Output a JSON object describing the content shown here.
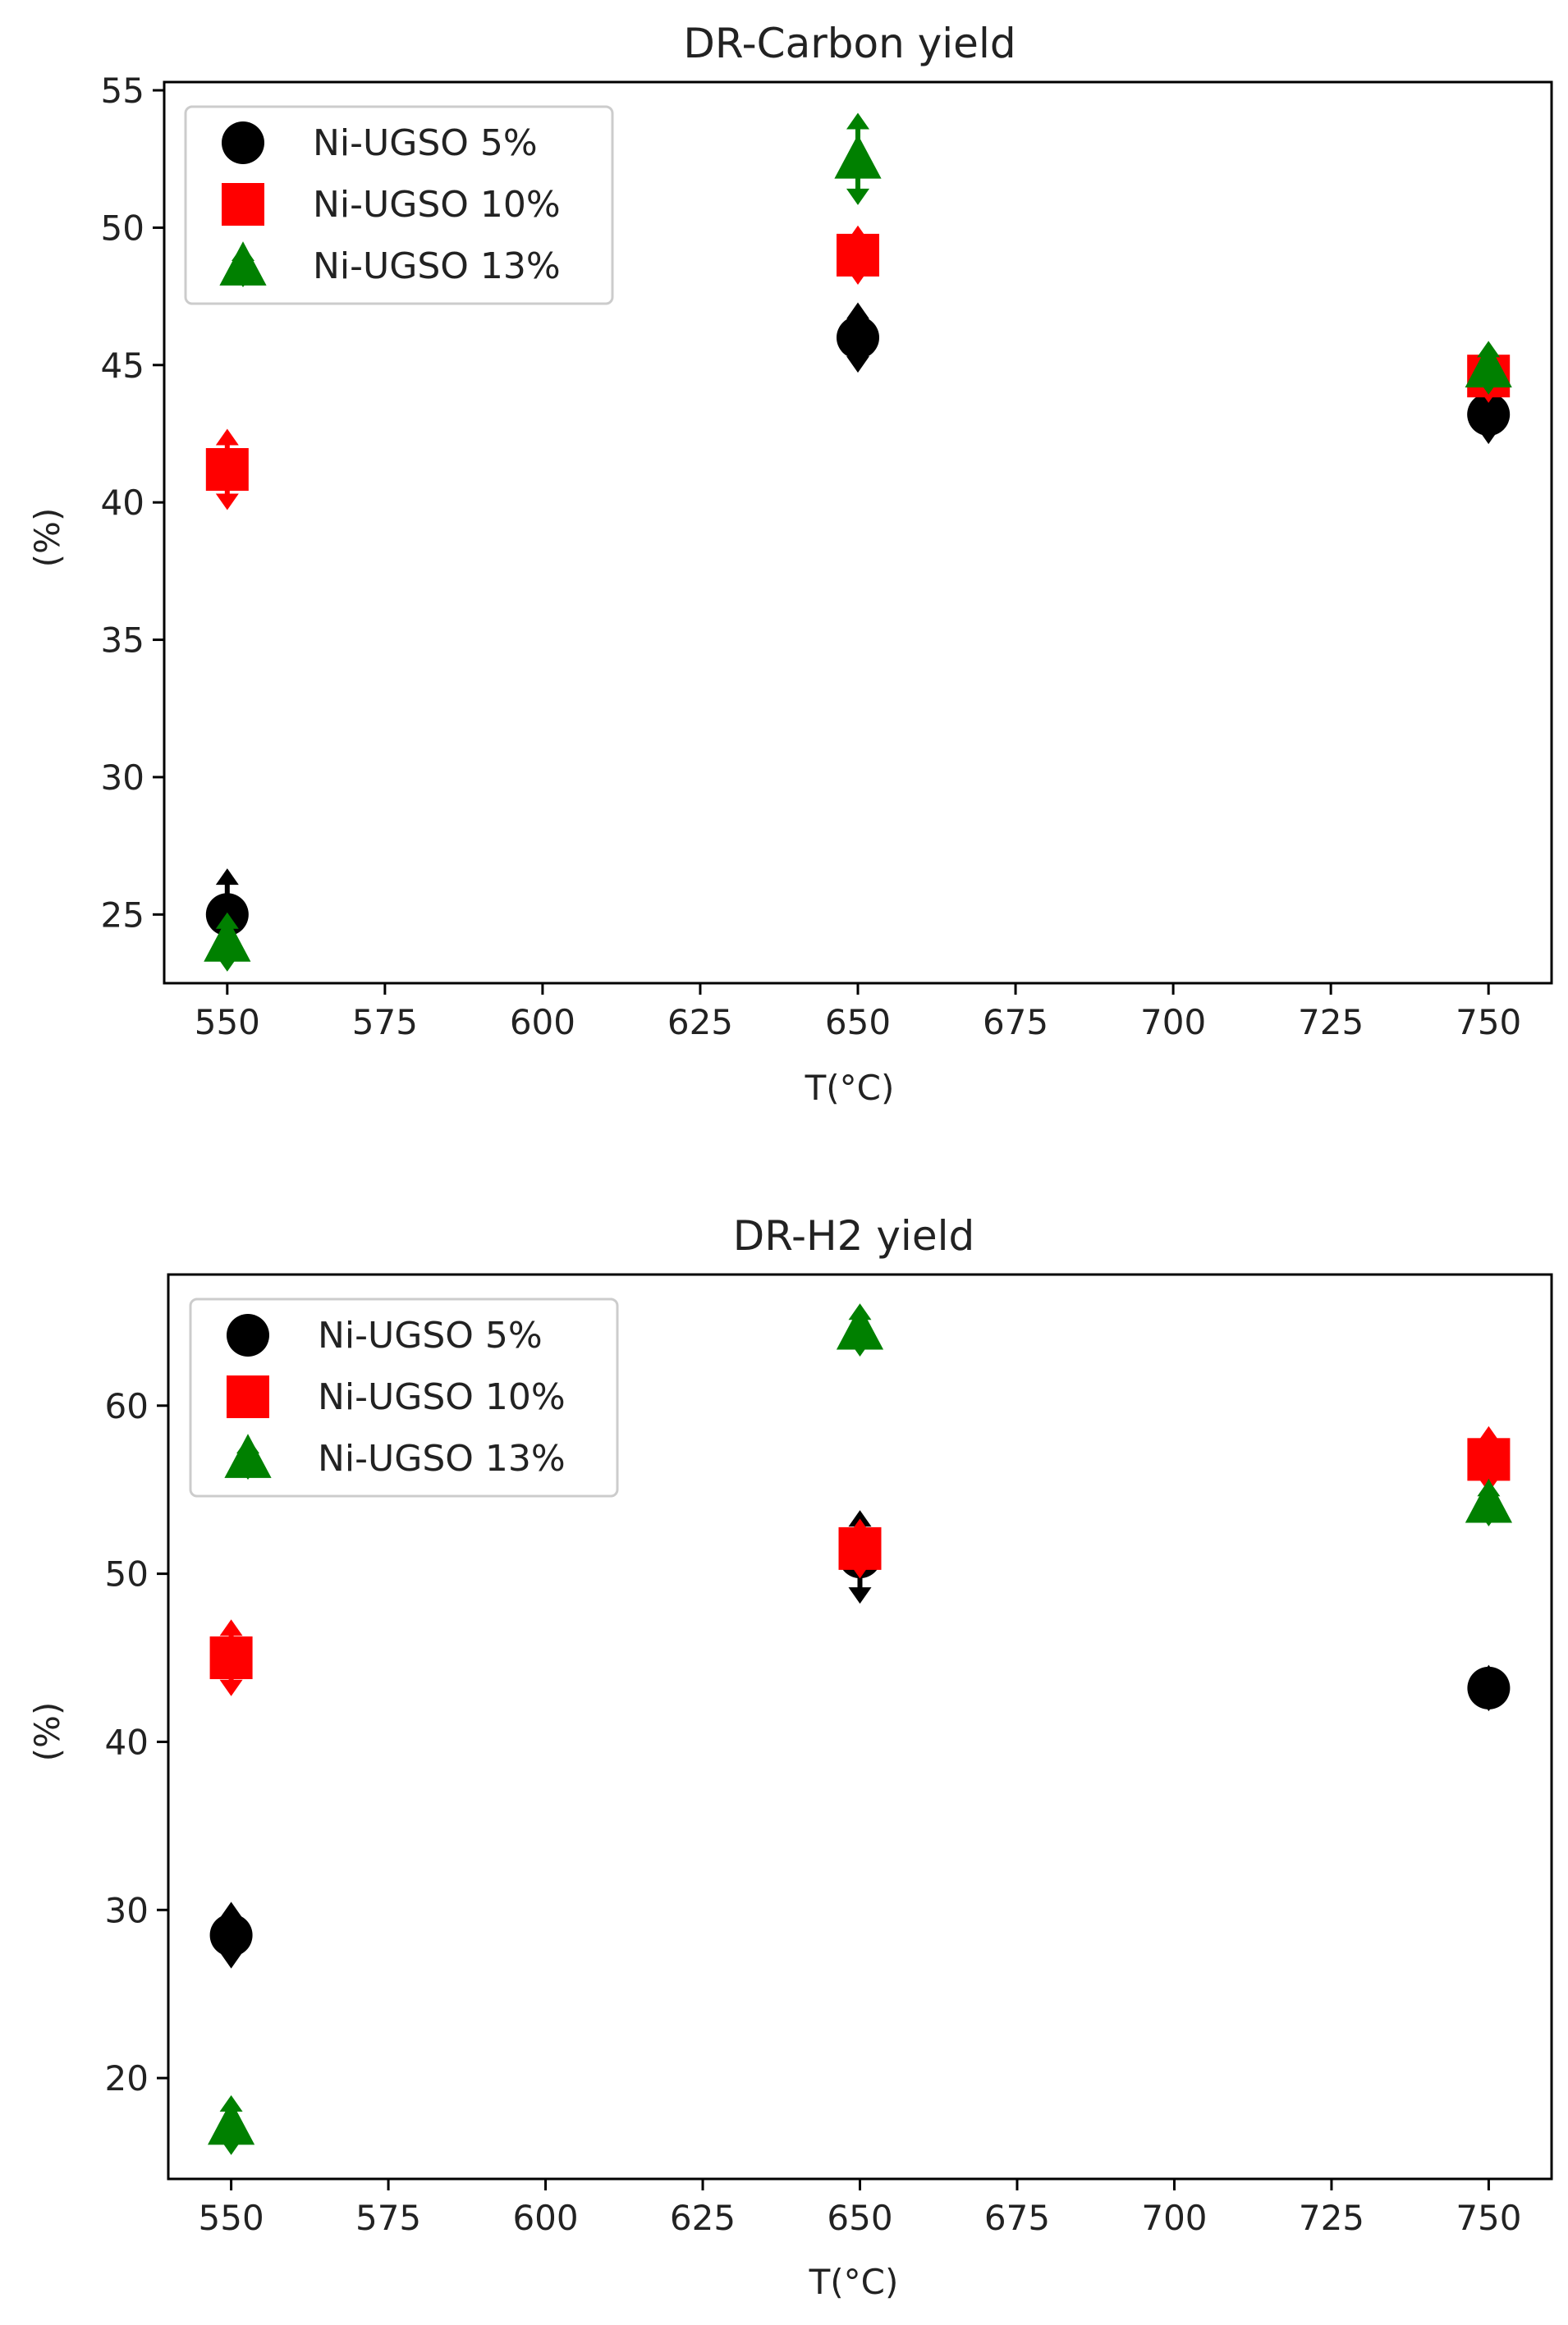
{
  "chart_data": [
    {
      "type": "scatter",
      "title": "DR-Carbon yield",
      "xlabel": "T(°C)",
      "ylabel": "(%)",
      "xlim": [
        540,
        760
      ],
      "ylim": [
        22.5,
        55.3
      ],
      "xticks": [
        550,
        575,
        600,
        625,
        650,
        675,
        700,
        725,
        750
      ],
      "yticks": [
        25,
        30,
        35,
        40,
        45,
        50,
        55
      ],
      "legend_position": "top-left",
      "grid": false,
      "series": [
        {
          "name": "Ni-UGSO 5%",
          "color": "#000000",
          "marker": "circle",
          "x": [
            550,
            650,
            750
          ],
          "y": [
            25.0,
            46.0,
            43.2
          ],
          "err": [
            1.2,
            0.8,
            0.6
          ]
        },
        {
          "name": "Ni-UGSO 10%",
          "color": "#ff0000",
          "marker": "square",
          "x": [
            550,
            650,
            750
          ],
          "y": [
            41.2,
            49.0,
            44.6
          ],
          "err": [
            1.0,
            0.6,
            0.5
          ]
        },
        {
          "name": "Ni-UGSO 13%",
          "color": "#008000",
          "marker": "triangle",
          "x": [
            550,
            650,
            750
          ],
          "y": [
            24.0,
            52.5,
            44.9
          ],
          "err": [
            0.6,
            1.2,
            0.5
          ]
        }
      ]
    },
    {
      "type": "scatter",
      "title": "DR-H2 yield",
      "xlabel": "T(°C)",
      "ylabel": "(%)",
      "xlim": [
        540,
        760
      ],
      "ylim": [
        14.0,
        67.8
      ],
      "xticks": [
        550,
        575,
        600,
        625,
        650,
        675,
        700,
        725,
        750
      ],
      "yticks": [
        20,
        30,
        40,
        50,
        60
      ],
      "legend_position": "top-left",
      "grid": false,
      "series": [
        {
          "name": "Ni-UGSO 5%",
          "color": "#000000",
          "marker": "circle",
          "x": [
            550,
            650,
            750
          ],
          "y": [
            28.5,
            51.0,
            43.2
          ],
          "err": [
            1.2,
            2.0,
            0.6
          ]
        },
        {
          "name": "Ni-UGSO 10%",
          "color": "#ff0000",
          "marker": "square",
          "x": [
            550,
            650,
            750
          ],
          "y": [
            45.0,
            51.5,
            56.8
          ],
          "err": [
            1.5,
            1.0,
            1.2
          ]
        },
        {
          "name": "Ni-UGSO 13%",
          "color": "#008000",
          "marker": "triangle",
          "x": [
            550,
            650,
            750
          ],
          "y": [
            17.2,
            64.5,
            54.2
          ],
          "err": [
            1.0,
            0.8,
            0.6
          ]
        }
      ]
    }
  ]
}
